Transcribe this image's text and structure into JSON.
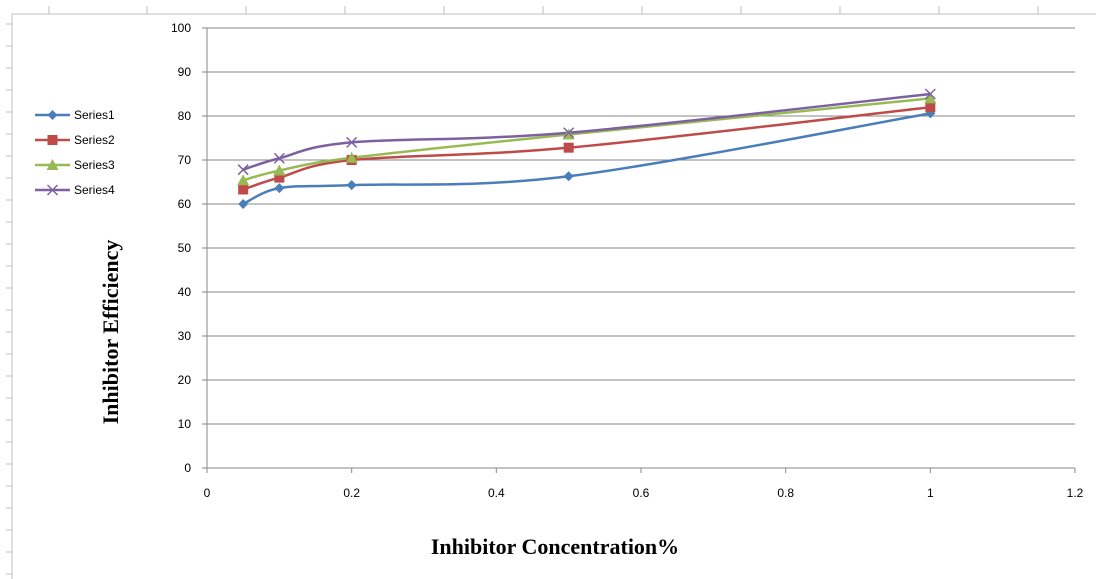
{
  "chart_data": {
    "type": "line",
    "title": "",
    "xlabel": "Inhibitor Concentration%",
    "ylabel": "Inhibitor Efficiency",
    "xlim": [
      0,
      1.2
    ],
    "ylim": [
      0,
      100
    ],
    "x_ticks": [
      "0",
      "0.2",
      "0.4",
      "0.6",
      "0.8",
      "1",
      "1.2"
    ],
    "y_ticks": [
      "0",
      "10",
      "20",
      "30",
      "40",
      "50",
      "60",
      "70",
      "80",
      "90",
      "100"
    ],
    "grid": "horizontal",
    "legend_position": "left",
    "x": [
      0.05,
      0.1,
      0.2,
      0.5,
      1
    ],
    "series": [
      {
        "name": "Series1",
        "values": [
          60,
          63.6,
          64.3,
          66.3,
          80.6
        ],
        "color": "#4a7ebb",
        "marker": "diamond"
      },
      {
        "name": "Series2",
        "values": [
          63.3,
          66,
          70,
          72.8,
          82
        ],
        "color": "#be4b48",
        "marker": "square"
      },
      {
        "name": "Series3",
        "values": [
          65.4,
          67.6,
          70.5,
          75.8,
          84
        ],
        "color": "#98b954",
        "marker": "triangle"
      },
      {
        "name": "Series4",
        "values": [
          67.8,
          70.4,
          74,
          76.2,
          85
        ],
        "color": "#7d60a0",
        "marker": "x"
      }
    ]
  }
}
